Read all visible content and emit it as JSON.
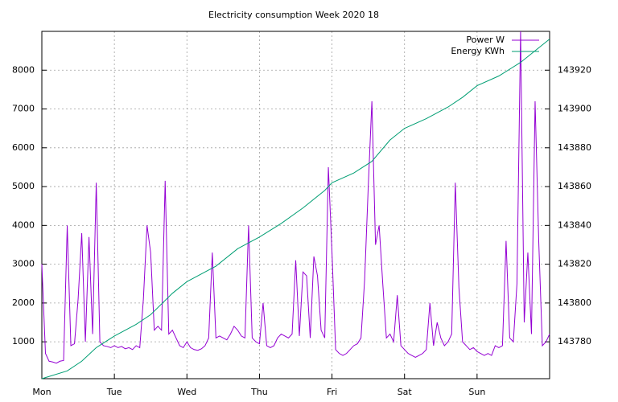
{
  "chart_data": {
    "type": "line",
    "title": "Electricity consumption Week 2020 18",
    "xlim": [
      0,
      7
    ],
    "xticks": [
      {
        "value": 0,
        "label": "Mon"
      },
      {
        "value": 1,
        "label": "Tue"
      },
      {
        "value": 2,
        "label": "Wed"
      },
      {
        "value": 3,
        "label": "Thu"
      },
      {
        "value": 4,
        "label": "Fri"
      },
      {
        "value": 5,
        "label": "Sat"
      },
      {
        "value": 6,
        "label": "Sun"
      }
    ],
    "ylim": [
      50,
      9000
    ],
    "yticks": [
      1000,
      2000,
      3000,
      4000,
      5000,
      6000,
      7000,
      8000
    ],
    "y2lim": [
      143761,
      143940
    ],
    "y2ticks": [
      143780,
      143800,
      143820,
      143840,
      143860,
      143880,
      143900,
      143920
    ],
    "grid": true,
    "legend": "top-right",
    "series": [
      {
        "name": "Power W",
        "color": "#9400d3",
        "x": [
          0,
          0.05,
          0.1,
          0.15,
          0.2,
          0.25,
          0.3,
          0.35,
          0.4,
          0.45,
          0.5,
          0.55,
          0.6,
          0.65,
          0.7,
          0.75,
          0.8,
          0.85,
          0.9,
          0.95,
          1,
          1.05,
          1.1,
          1.15,
          1.2,
          1.25,
          1.3,
          1.35,
          1.4,
          1.45,
          1.5,
          1.55,
          1.6,
          1.65,
          1.7,
          1.75,
          1.8,
          1.85,
          1.9,
          1.95,
          2,
          2.05,
          2.1,
          2.15,
          2.2,
          2.25,
          2.3,
          2.35,
          2.4,
          2.45,
          2.5,
          2.55,
          2.6,
          2.65,
          2.7,
          2.75,
          2.8,
          2.85,
          2.9,
          2.95,
          3,
          3.05,
          3.1,
          3.15,
          3.2,
          3.25,
          3.3,
          3.35,
          3.4,
          3.45,
          3.5,
          3.55,
          3.6,
          3.65,
          3.7,
          3.75,
          3.8,
          3.85,
          3.9,
          3.95,
          4,
          4.05,
          4.1,
          4.15,
          4.2,
          4.25,
          4.3,
          4.35,
          4.4,
          4.45,
          4.5,
          4.55,
          4.6,
          4.65,
          4.7,
          4.75,
          4.8,
          4.85,
          4.9,
          4.95,
          5,
          5.05,
          5.1,
          5.15,
          5.2,
          5.25,
          5.3,
          5.35,
          5.4,
          5.45,
          5.5,
          5.55,
          5.6,
          5.65,
          5.7,
          5.75,
          5.8,
          5.85,
          5.9,
          5.95,
          6,
          6.05,
          6.1,
          6.15,
          6.2,
          6.25,
          6.3,
          6.35,
          6.4,
          6.45,
          6.5,
          6.55,
          6.6,
          6.65,
          6.7,
          6.75,
          6.8,
          6.85,
          6.9,
          6.95,
          7
        ],
        "values": [
          3000,
          700,
          500,
          480,
          450,
          500,
          520,
          4000,
          900,
          950,
          2100,
          3800,
          1000,
          3700,
          1200,
          5100,
          1000,
          900,
          880,
          850,
          900,
          850,
          880,
          820,
          850,
          800,
          900,
          850,
          2100,
          4000,
          3300,
          1300,
          1400,
          1300,
          5150,
          1200,
          1300,
          1100,
          900,
          850,
          1000,
          850,
          800,
          780,
          820,
          900,
          1100,
          3300,
          1100,
          1150,
          1100,
          1050,
          1200,
          1400,
          1300,
          1150,
          1100,
          4000,
          1100,
          1000,
          950,
          2000,
          900,
          850,
          900,
          1100,
          1200,
          1150,
          1100,
          1200,
          3100,
          1150,
          2800,
          2700,
          1100,
          3200,
          2700,
          1300,
          1100,
          5500,
          3300,
          800,
          700,
          650,
          700,
          800,
          900,
          950,
          1100,
          2600,
          5000,
          7200,
          3500,
          4000,
          2500,
          1100,
          1200,
          1000,
          2200,
          900,
          800,
          700,
          650,
          600,
          650,
          700,
          800,
          2000,
          900,
          1500,
          1100,
          900,
          1000,
          1200,
          5100,
          2400,
          1000,
          900,
          800,
          850,
          750,
          700,
          650,
          700,
          650,
          900,
          850,
          900,
          3600,
          1100,
          1000,
          2500,
          9000,
          1500,
          3300,
          1200,
          7200,
          3600,
          900,
          1000,
          1200
        ]
      },
      {
        "name": "Energy KWh",
        "color": "#009e73",
        "axis": "y2",
        "x": [
          0,
          0.35,
          0.55,
          0.75,
          1,
          1.3,
          1.5,
          1.8,
          2,
          2.4,
          2.7,
          3,
          3.3,
          3.6,
          3.9,
          4,
          4.3,
          4.55,
          4.8,
          5,
          5.3,
          5.6,
          5.8,
          6,
          6.3,
          6.6,
          6.8,
          7
        ],
        "values": [
          143761,
          143765,
          143770,
          143777,
          143783,
          143789,
          143794,
          143805,
          143811,
          143819,
          143828,
          143834,
          143841,
          143849,
          143858,
          143862,
          143867,
          143873,
          143884,
          143890,
          143895,
          143901,
          143906,
          143912,
          143917,
          143924,
          143930,
          143936
        ]
      }
    ]
  }
}
